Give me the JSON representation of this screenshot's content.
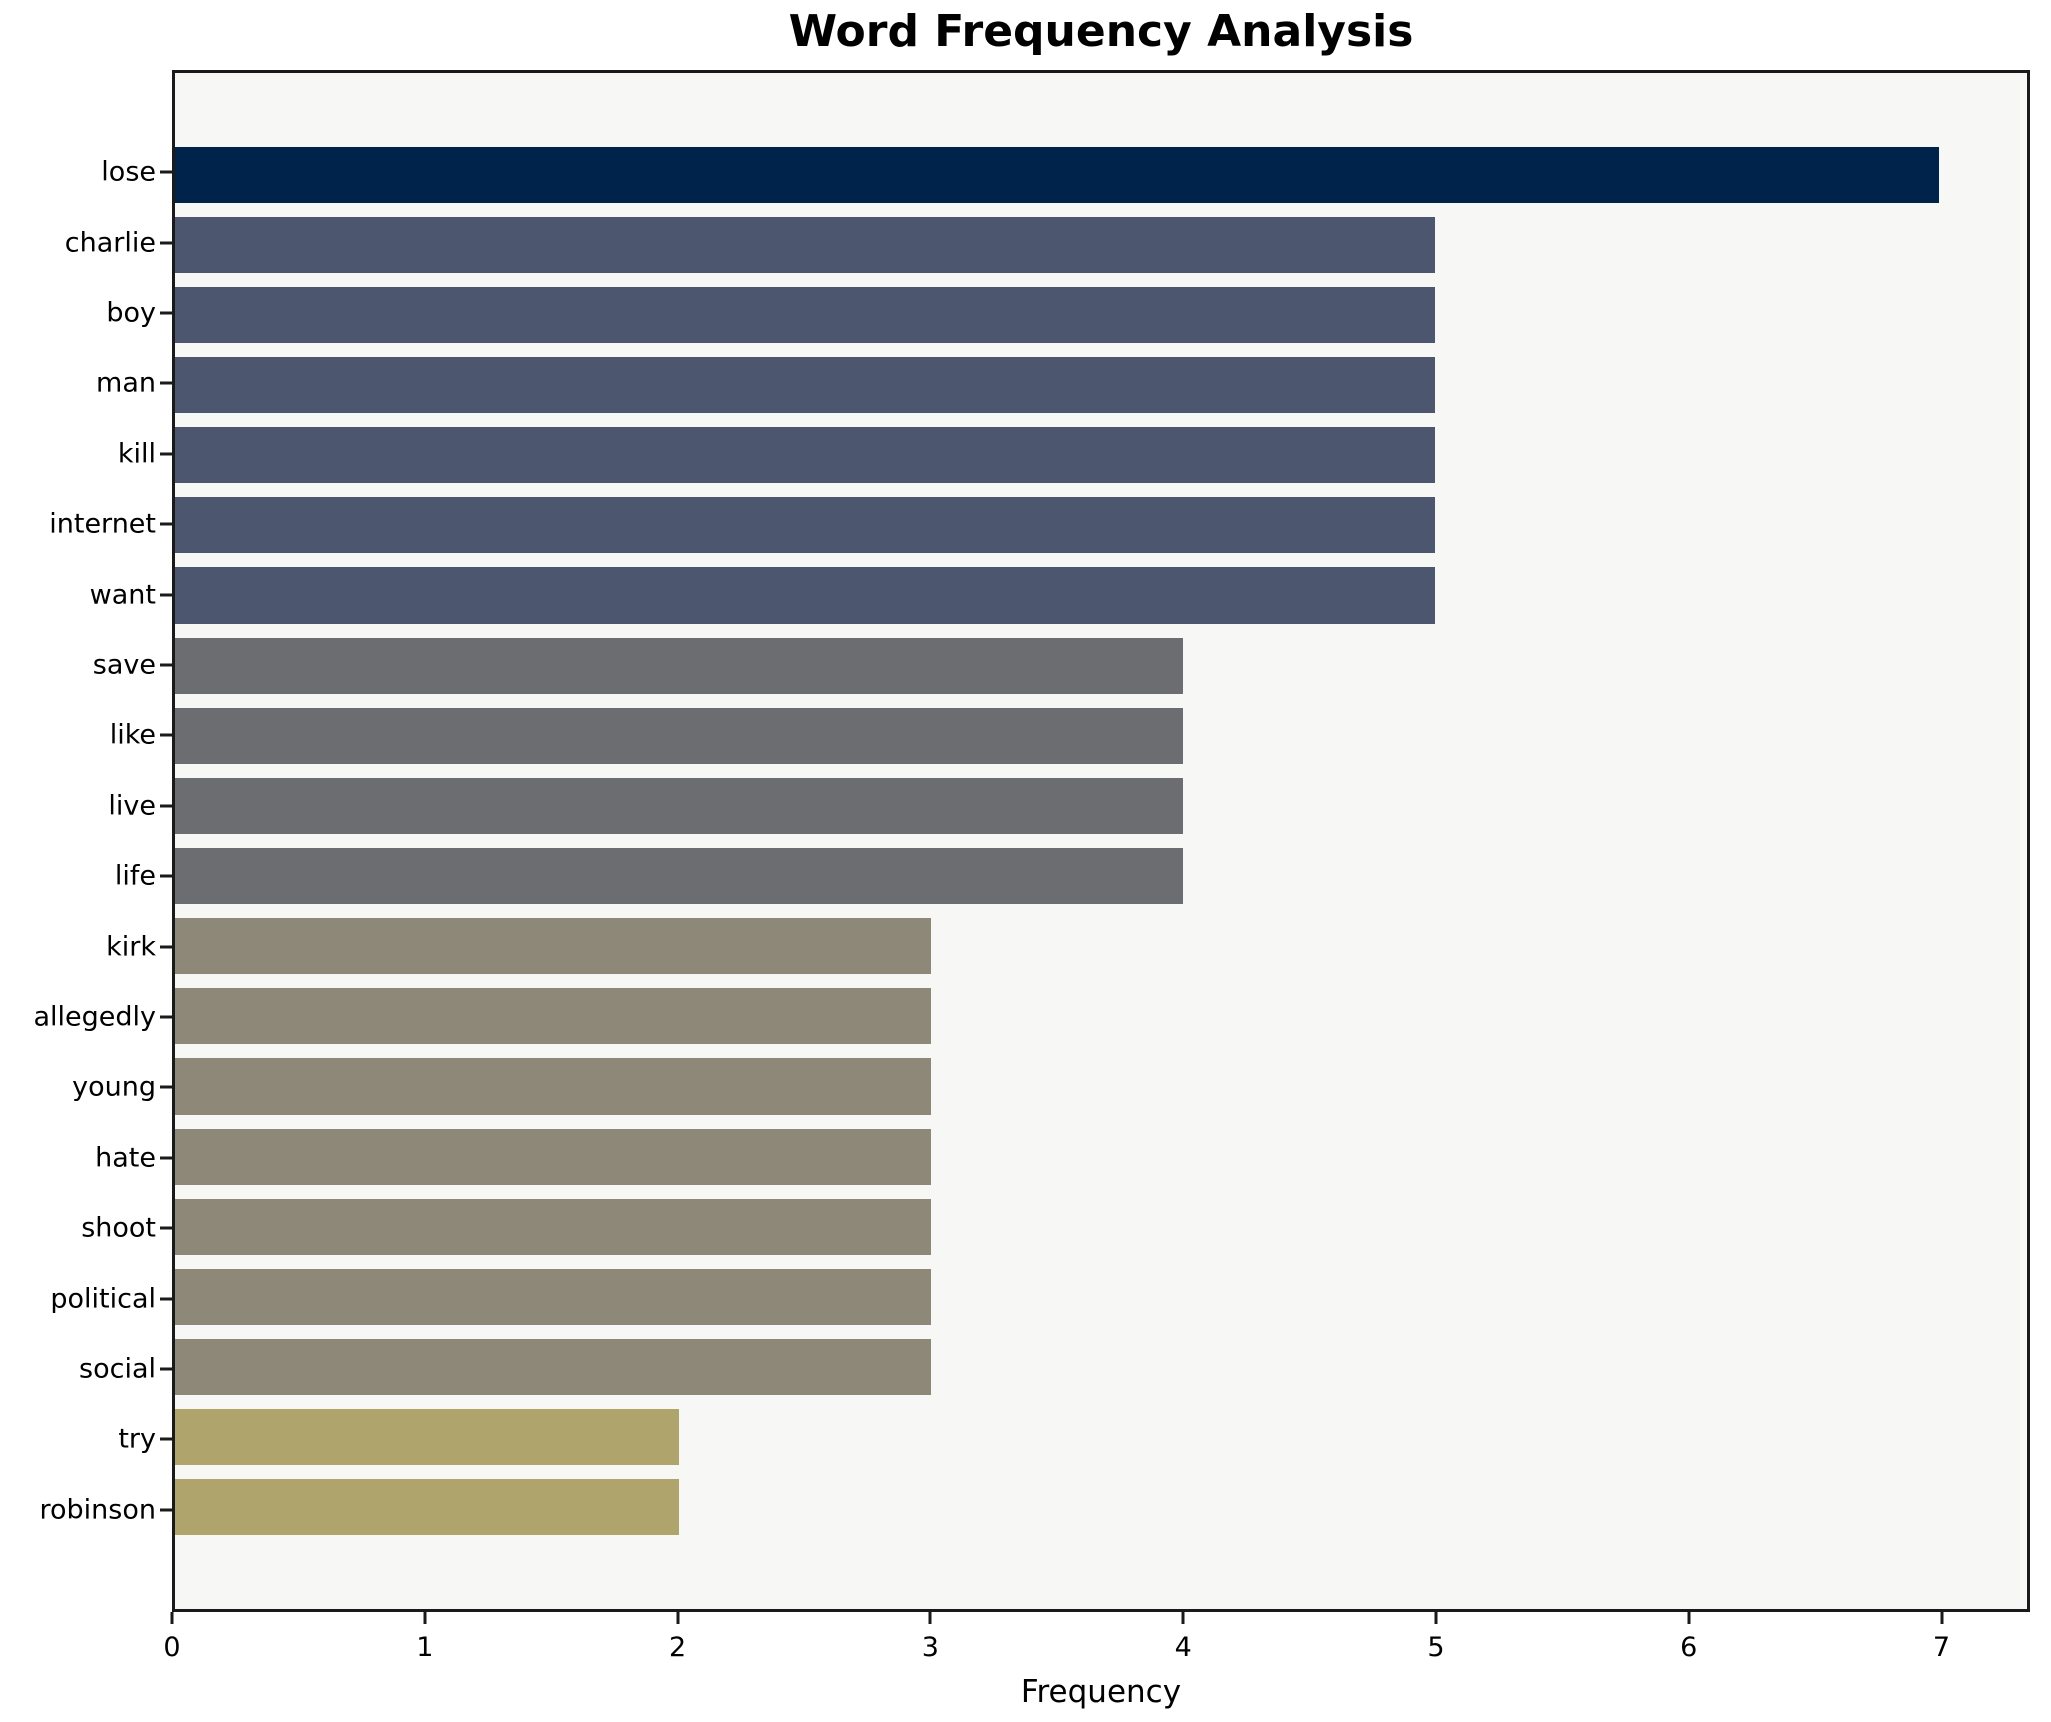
{
  "title": "Word Frequency Analysis",
  "chart_data": {
    "type": "bar",
    "orientation": "horizontal",
    "title": "Word Frequency Analysis",
    "xlabel": "Frequency",
    "ylabel": "",
    "categories": [
      "lose",
      "charlie",
      "boy",
      "man",
      "kill",
      "internet",
      "want",
      "save",
      "like",
      "live",
      "life",
      "kirk",
      "allegedly",
      "young",
      "hate",
      "shoot",
      "political",
      "social",
      "try",
      "robinson"
    ],
    "values": [
      7,
      5,
      5,
      5,
      5,
      5,
      5,
      4,
      4,
      4,
      4,
      3,
      3,
      3,
      3,
      3,
      3,
      3,
      2,
      2
    ],
    "bar_colors": [
      "#00234c",
      "#4d566f",
      "#4d566f",
      "#4d566f",
      "#4d566f",
      "#4d566f",
      "#4d566f",
      "#6c6d71",
      "#6c6d71",
      "#6c6d71",
      "#6c6d71",
      "#8e8878",
      "#8e8878",
      "#8e8878",
      "#8e8878",
      "#8e8878",
      "#8e8878",
      "#8e8878",
      "#b0a46d",
      "#b0a46d"
    ],
    "x_ticks": [
      0,
      1,
      2,
      3,
      4,
      5,
      6,
      7
    ],
    "xlim": [
      0,
      7.35
    ],
    "grid": false,
    "legend": "none",
    "plot_background": "#f7f7f6",
    "frame_color": "#1a1a1a",
    "value_color_map": {
      "7": "#00234c",
      "5": "#4d566f",
      "4": "#6c6d71",
      "3": "#8e8878",
      "2": "#b0a46d"
    }
  }
}
